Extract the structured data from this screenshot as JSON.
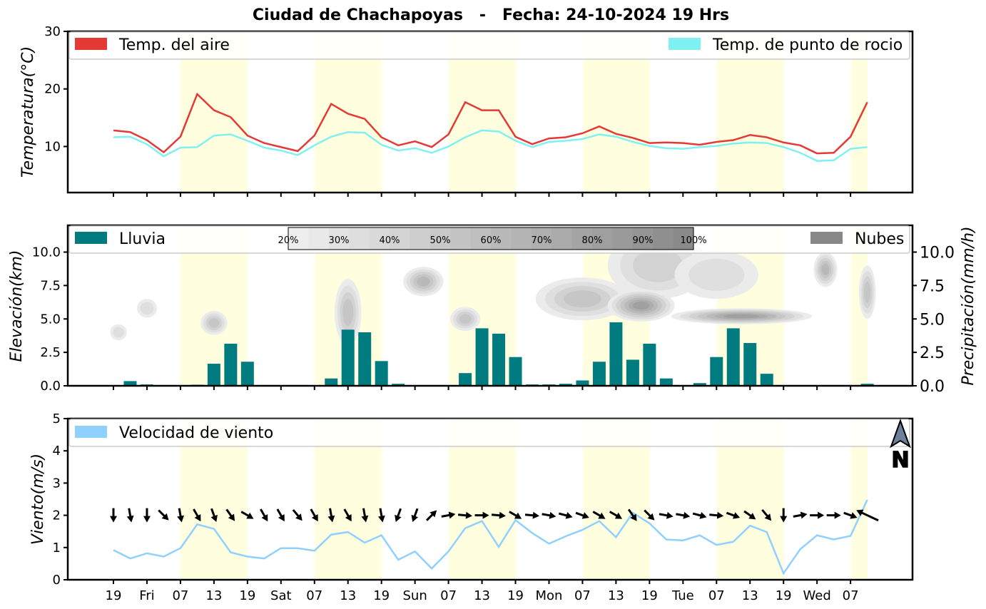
{
  "title": "Ciudad de Chachapoyas   -   Fecha: 24-10-2024 19 Hrs",
  "colors": {
    "day_shade": "#ffffe0",
    "temp_air": "#e53935",
    "temp_dew": "#80f0f0",
    "rain": "#007b7f",
    "cloud": "#888888",
    "wind": "#90d0ff"
  },
  "x_tick_labels": [
    "19",
    "Fri",
    "07",
    "13",
    "19",
    "Sat",
    "07",
    "13",
    "19",
    "Sun",
    "07",
    "13",
    "19",
    "Mon",
    "07",
    "13",
    "19",
    "Tue",
    "07",
    "13",
    "19",
    "Wed",
    "07"
  ],
  "chart_data": [
    {
      "type": "line",
      "ylabel": "Temperatura(°C)",
      "ylim": [
        2,
        30
      ],
      "yticks": [
        10,
        20,
        30
      ],
      "grid": false,
      "legend": [
        {
          "label": "Temp. del aire",
          "color": "#e53935",
          "placement": "top-left"
        },
        {
          "label": "Temp. de punto de rocio",
          "color": "#80f0f0",
          "placement": "top-right"
        }
      ],
      "x": [
        0,
        1,
        2,
        3,
        4,
        5,
        6,
        7,
        8,
        9,
        10,
        11,
        12,
        13,
        14,
        15,
        16,
        17,
        18,
        19,
        20,
        21,
        22,
        23,
        24,
        25,
        26,
        27,
        28,
        29,
        30,
        31,
        32,
        33,
        34,
        35,
        36,
        37,
        38,
        39,
        40,
        41,
        42,
        43,
        44,
        45
      ],
      "series": [
        {
          "name": "Temp. del aire",
          "values": [
            12.8,
            12.5,
            11.1,
            9.0,
            11.7,
            19.1,
            16.3,
            15.1,
            11.9,
            10.6,
            9.9,
            9.2,
            11.9,
            17.4,
            15.7,
            14.8,
            11.6,
            10.2,
            10.9,
            9.9,
            12.1,
            17.7,
            16.3,
            16.3,
            11.7,
            10.4,
            11.4,
            11.6,
            12.3,
            13.5,
            12.2,
            11.5,
            10.6,
            10.7,
            10.6,
            10.3,
            10.8,
            11.1,
            12.0,
            11.6,
            10.7,
            10.2,
            8.8,
            8.9,
            11.7,
            17.7
          ]
        },
        {
          "name": "Temp. de punto de rocio",
          "values": [
            11.6,
            11.7,
            10.4,
            8.3,
            9.8,
            9.9,
            11.9,
            12.1,
            11.0,
            9.8,
            9.3,
            8.5,
            10.2,
            11.7,
            12.5,
            12.4,
            10.3,
            9.3,
            9.7,
            8.9,
            10.0,
            11.6,
            12.8,
            12.6,
            11.0,
            9.9,
            10.8,
            11.0,
            11.3,
            12.1,
            11.7,
            10.8,
            10.1,
            9.7,
            9.6,
            9.9,
            10.1,
            10.5,
            10.7,
            10.6,
            9.9,
            8.9,
            7.5,
            7.6,
            9.6,
            9.9
          ]
        }
      ]
    },
    {
      "type": "bar",
      "ylabel": "Elevación(km)",
      "ylabel_right": "Precipitación(mm/h)",
      "ylim": [
        0,
        12
      ],
      "yticks": [
        0.0,
        2.5,
        5.0,
        7.5,
        10.0
      ],
      "ytick_labels": [
        "0.0",
        "2.5",
        "5.0",
        "7.5",
        "10.0"
      ],
      "legend": [
        {
          "label": "Lluvia",
          "color": "#007b7f",
          "placement": "top-left"
        },
        {
          "label": "Nubes",
          "color": "#888888",
          "placement": "top-right"
        }
      ],
      "cloud_scale_labels": [
        "20%",
        "30%",
        "40%",
        "50%",
        "60%",
        "70%",
        "80%",
        "90%",
        "100%"
      ],
      "x": [
        0,
        1,
        2,
        3,
        4,
        5,
        6,
        7,
        8,
        9,
        10,
        11,
        12,
        13,
        14,
        15,
        16,
        17,
        18,
        19,
        20,
        21,
        22,
        23,
        24,
        25,
        26,
        27,
        28,
        29,
        30,
        31,
        32,
        33,
        34,
        35,
        36,
        37,
        38,
        39,
        40,
        41,
        42,
        43,
        44,
        45
      ],
      "values": [
        0,
        0.35,
        0.1,
        0,
        0,
        0.08,
        1.65,
        3.15,
        1.8,
        0,
        0,
        0,
        0,
        0.55,
        4.2,
        4.0,
        1.85,
        0.15,
        0.05,
        0,
        0,
        0.95,
        4.3,
        3.9,
        2.15,
        0.1,
        0.1,
        0.15,
        0.4,
        1.8,
        4.75,
        1.95,
        3.15,
        0.55,
        0,
        0.2,
        2.15,
        4.3,
        3.2,
        0.9,
        0.05,
        0,
        0,
        0,
        0,
        0.15
      ],
      "clouds": [
        {
          "x": 2.0,
          "y": 5.8,
          "rx": 0.6,
          "ry": 0.7,
          "level": 0.3
        },
        {
          "x": 0.3,
          "y": 4.0,
          "rx": 0.5,
          "ry": 0.6,
          "level": 0.2
        },
        {
          "x": 6.0,
          "y": 4.7,
          "rx": 0.8,
          "ry": 0.9,
          "level": 0.5
        },
        {
          "x": 14.0,
          "y": 5.5,
          "rx": 0.8,
          "ry": 2.5,
          "level": 0.5
        },
        {
          "x": 18.5,
          "y": 7.8,
          "rx": 1.2,
          "ry": 1.1,
          "level": 0.6
        },
        {
          "x": 21.0,
          "y": 5.0,
          "rx": 0.9,
          "ry": 0.9,
          "level": 0.5
        },
        {
          "x": 28.0,
          "y": 6.5,
          "rx": 2.8,
          "ry": 1.6,
          "level": 0.5
        },
        {
          "x": 32.5,
          "y": 9.0,
          "rx": 3.0,
          "ry": 2.5,
          "level": 0.4
        },
        {
          "x": 31.5,
          "y": 6.0,
          "rx": 2.0,
          "ry": 1.2,
          "level": 0.9
        },
        {
          "x": 37.5,
          "y": 5.2,
          "rx": 4.2,
          "ry": 0.6,
          "level": 0.9
        },
        {
          "x": 36.0,
          "y": 8.3,
          "rx": 2.5,
          "ry": 1.8,
          "level": 0.3
        },
        {
          "x": 42.5,
          "y": 8.7,
          "rx": 0.7,
          "ry": 1.3,
          "level": 0.6
        },
        {
          "x": 45.0,
          "y": 7.0,
          "rx": 0.5,
          "ry": 2.0,
          "level": 0.5
        }
      ]
    },
    {
      "type": "line",
      "ylabel": "Viento(m/s)",
      "ylim": [
        0,
        5
      ],
      "yticks": [
        0,
        1,
        2,
        3,
        4,
        5
      ],
      "legend": [
        {
          "label": "Velocidad de viento",
          "color": "#90d0ff",
          "placement": "top-left"
        }
      ],
      "north_label": "N",
      "x": [
        0,
        1,
        2,
        3,
        4,
        5,
        6,
        7,
        8,
        9,
        10,
        11,
        12,
        13,
        14,
        15,
        16,
        17,
        18,
        19,
        20,
        21,
        22,
        23,
        24,
        25,
        26,
        27,
        28,
        29,
        30,
        31,
        32,
        33,
        34,
        35,
        36,
        37,
        38,
        39,
        40,
        41,
        42,
        43,
        44,
        45
      ],
      "series": [
        {
          "name": "Velocidad de viento",
          "values": [
            0.92,
            0.66,
            0.82,
            0.72,
            0.98,
            1.72,
            1.58,
            0.85,
            0.72,
            0.66,
            0.98,
            0.98,
            0.9,
            1.4,
            1.48,
            1.15,
            1.38,
            0.62,
            0.88,
            0.35,
            0.88,
            1.6,
            1.82,
            1.02,
            1.85,
            1.45,
            1.12,
            1.35,
            1.55,
            1.82,
            1.32,
            2.08,
            1.75,
            1.25,
            1.22,
            1.38,
            1.08,
            1.18,
            1.68,
            1.48,
            0.2,
            0.95,
            1.38,
            1.25,
            1.36,
            2.48
          ]
        }
      ],
      "wind_direction_deg": [
        180,
        170,
        180,
        135,
        170,
        150,
        160,
        145,
        120,
        150,
        150,
        140,
        150,
        170,
        150,
        170,
        170,
        200,
        200,
        45,
        80,
        95,
        90,
        95,
        120,
        95,
        100,
        105,
        110,
        120,
        120,
        145,
        135,
        100,
        100,
        105,
        95,
        110,
        125,
        140,
        180,
        80,
        90,
        90,
        110,
        295
      ]
    }
  ]
}
